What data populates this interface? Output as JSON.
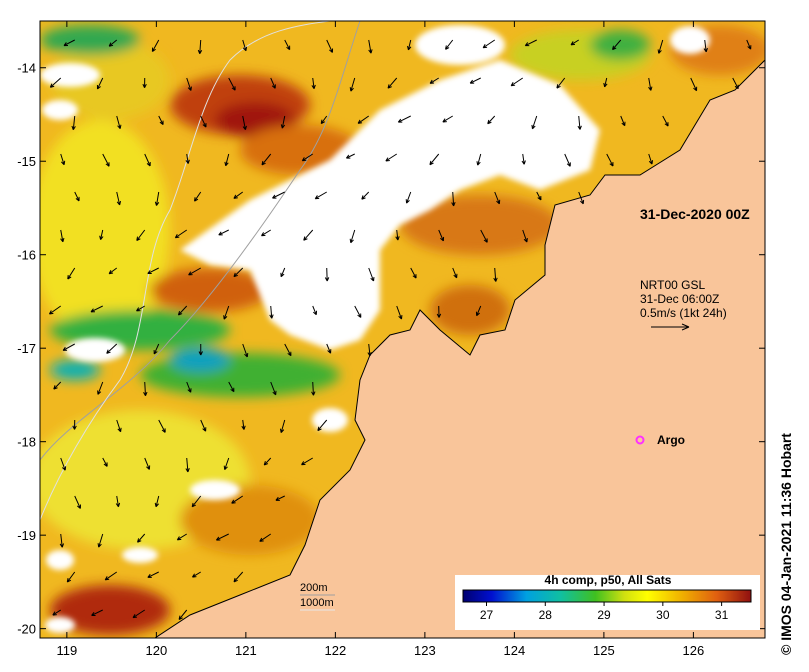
{
  "map": {
    "lon_ticks": [
      "119",
      "120",
      "121",
      "122",
      "123",
      "124",
      "125",
      "126"
    ],
    "lat_ticks": [
      "-14",
      "-15",
      "-16",
      "-17",
      "-18",
      "-19",
      "-20"
    ],
    "lon_range": [
      118.7,
      126.8
    ],
    "lat_range": [
      -20.1,
      -13.5
    ]
  },
  "annotations": {
    "date_label": "31-Dec-2020 00Z",
    "current_title": "NRT00 GSL",
    "current_time": "31-Dec 06:00Z",
    "current_scale": "0.5m/s (1kt 24h)",
    "argo_label": "Argo",
    "contour_200": "200m",
    "contour_1000": "1000m"
  },
  "colorbar": {
    "title": "4h comp, p50, All Sats",
    "ticks": [
      "27",
      "28",
      "29",
      "30",
      "31"
    ],
    "range": [
      26.6,
      31.5
    ]
  },
  "credit": "© IMOS 04-Jan-2021 11:36 Hobart",
  "colors": {
    "land": "#f9c59a",
    "cloud": "#ffffff",
    "sst_warm": "#e8a018",
    "sst_hot": "#b83010",
    "sst_cool": "#28b040",
    "argo": "#ff30ff"
  }
}
